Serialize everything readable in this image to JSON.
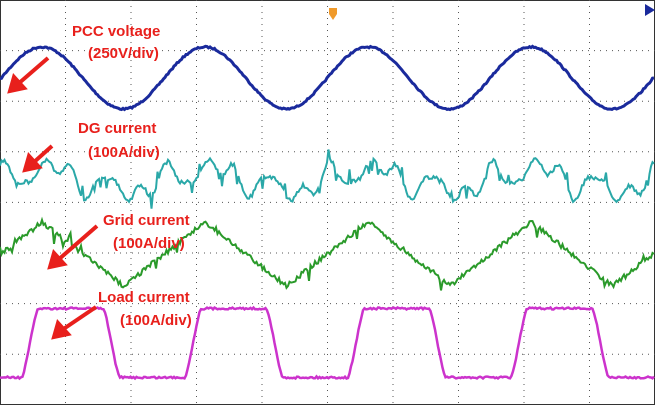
{
  "traces": [
    {
      "label": "PCC voltage",
      "scale": "(250V/div)"
    },
    {
      "label": "DG current",
      "scale": "(100A/div)"
    },
    {
      "label": "Grid current",
      "scale": "(100A/div)"
    },
    {
      "label": "Load current",
      "scale": "(100A/div)"
    }
  ]
}
